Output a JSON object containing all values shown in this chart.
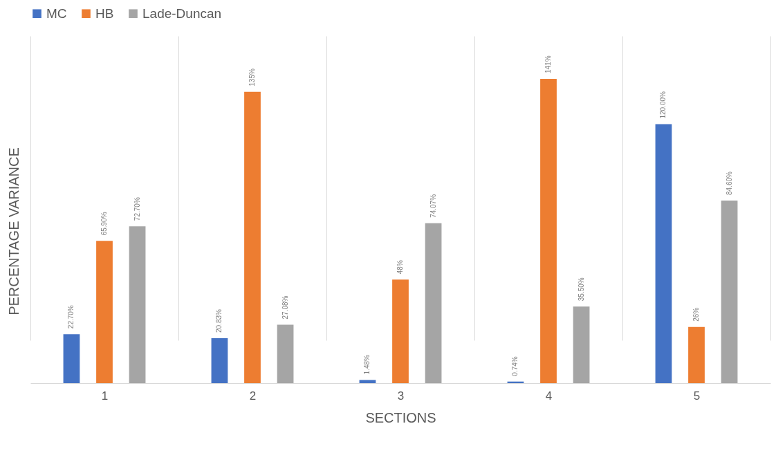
{
  "chart_data": {
    "type": "bar",
    "xlabel": "SECTIONS",
    "ylabel": "PERCENTAGE VARIANCE",
    "categories": [
      "1",
      "2",
      "3",
      "4",
      "5"
    ],
    "series": [
      {
        "name": "MC",
        "color": "#4472c4",
        "values": [
          22.7,
          20.83,
          1.48,
          0.74,
          120.0
        ],
        "value_labels": [
          "22.70%",
          "20.83%",
          "1.48%",
          "0.74%",
          "120.00%"
        ]
      },
      {
        "name": "HB",
        "color": "#ed7d31",
        "values": [
          65.9,
          135,
          48,
          141,
          26
        ],
        "value_labels": [
          "65.90%",
          "135%",
          "48%",
          "141%",
          "26%"
        ]
      },
      {
        "name": "Lade-Duncan",
        "color": "#a5a5a5",
        "values": [
          72.7,
          27.08,
          74.07,
          35.5,
          84.6
        ],
        "value_labels": [
          "72.70%",
          "27.08%",
          "74.07%",
          "35.50%",
          "84.60%"
        ]
      }
    ],
    "legend": "top",
    "grid": "x",
    "tick_labels": "x"
  }
}
